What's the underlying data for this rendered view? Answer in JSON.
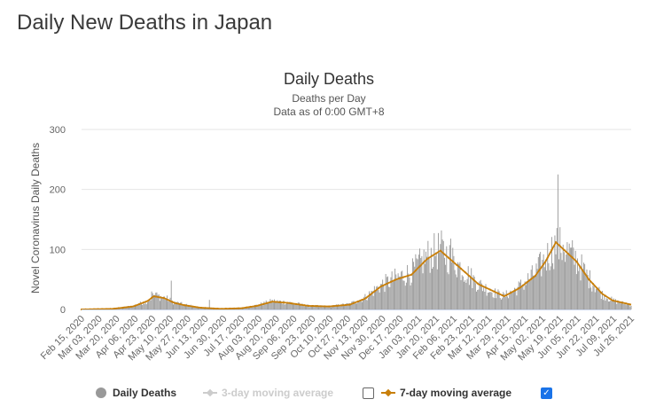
{
  "page": {
    "heading": "Daily New Deaths in Japan"
  },
  "chart_data": {
    "type": "bar",
    "title": "Daily Deaths",
    "subtitle_1": "Deaths per Day",
    "subtitle_2": "Data as of 0:00 GMT+8",
    "ylabel": "Novel Coronavirus Daily Deaths",
    "xlabel": "",
    "ylim": [
      0,
      300
    ],
    "yticks": [
      0,
      100,
      200,
      300
    ],
    "x_start": "2020-02-15",
    "x_end": "2021-08-01",
    "xtick_labels": [
      "Feb 15, 2020",
      "Mar 03, 2020",
      "Mar 20, 2020",
      "Apr 06, 2020",
      "Apr 23, 2020",
      "May 10, 2020",
      "May 27, 2020",
      "Jun 13, 2020",
      "Jun 30, 2020",
      "Jul 17, 2020",
      "Aug 03, 2020",
      "Aug 20, 2020",
      "Sep 06, 2020",
      "Sep 23, 2020",
      "Oct 10, 2020",
      "Oct 27, 2020",
      "Nov 13, 2020",
      "Nov 30, 2020",
      "Dec 17, 2020",
      "Jan 03, 2021",
      "Jan 20, 2021",
      "Feb 06, 2021",
      "Feb 23, 2021",
      "Mar 12, 2021",
      "Mar 29, 2021",
      "Apr 15, 2021",
      "May 02, 2021",
      "May 19, 2021",
      "Jun 05, 2021",
      "Jun 22, 2021",
      "Jul 09, 2021",
      "Jul 26, 2021"
    ],
    "series": [
      {
        "name": "Daily Deaths",
        "kind": "bar",
        "color": "#999999",
        "visible": true,
        "profile": [
          [
            0,
            0
          ],
          [
            30,
            1
          ],
          [
            50,
            6
          ],
          [
            64,
            14
          ],
          [
            70,
            24
          ],
          [
            80,
            20
          ],
          [
            90,
            12
          ],
          [
            100,
            8
          ],
          [
            115,
            3
          ],
          [
            135,
            1
          ],
          [
            155,
            2
          ],
          [
            170,
            7
          ],
          [
            185,
            14
          ],
          [
            200,
            12
          ],
          [
            220,
            6
          ],
          [
            240,
            5
          ],
          [
            260,
            9
          ],
          [
            275,
            20
          ],
          [
            290,
            40
          ],
          [
            305,
            52
          ],
          [
            320,
            62
          ],
          [
            335,
            88
          ],
          [
            348,
            100
          ],
          [
            360,
            82
          ],
          [
            372,
            63
          ],
          [
            385,
            42
          ],
          [
            400,
            28
          ],
          [
            410,
            22
          ],
          [
            425,
            38
          ],
          [
            440,
            60
          ],
          [
            450,
            85
          ],
          [
            460,
            107
          ],
          [
            470,
            99
          ],
          [
            480,
            82
          ],
          [
            492,
            52
          ],
          [
            505,
            25
          ],
          [
            515,
            15
          ],
          [
            533,
            7
          ]
        ],
        "spikes": [
          [
            68,
            30
          ],
          [
            72,
            28
          ],
          [
            87,
            48
          ],
          [
            124,
            16
          ],
          [
            358,
            118
          ],
          [
            462,
            225
          ],
          [
            467,
            108
          ]
        ]
      },
      {
        "name": "3-day moving average",
        "kind": "line",
        "color": "#cccccc",
        "visible": false
      },
      {
        "name": "7-day moving average",
        "kind": "line",
        "color": "#c87f0a",
        "visible": true,
        "profile": [
          [
            0,
            0
          ],
          [
            30,
            1
          ],
          [
            50,
            5
          ],
          [
            64,
            14
          ],
          [
            70,
            22
          ],
          [
            80,
            19
          ],
          [
            90,
            11
          ],
          [
            100,
            7
          ],
          [
            115,
            3
          ],
          [
            135,
            1
          ],
          [
            155,
            2
          ],
          [
            170,
            6
          ],
          [
            185,
            13
          ],
          [
            200,
            11
          ],
          [
            220,
            6
          ],
          [
            240,
            5
          ],
          [
            260,
            8
          ],
          [
            275,
            18
          ],
          [
            290,
            38
          ],
          [
            305,
            50
          ],
          [
            320,
            58
          ],
          [
            335,
            84
          ],
          [
            348,
            98
          ],
          [
            360,
            80
          ],
          [
            372,
            62
          ],
          [
            385,
            42
          ],
          [
            400,
            30
          ],
          [
            410,
            22
          ],
          [
            425,
            36
          ],
          [
            440,
            56
          ],
          [
            450,
            80
          ],
          [
            460,
            112
          ],
          [
            470,
            96
          ],
          [
            480,
            80
          ],
          [
            492,
            50
          ],
          [
            505,
            26
          ],
          [
            515,
            15
          ],
          [
            533,
            8
          ]
        ]
      }
    ],
    "legend": {
      "position": "bottom"
    }
  },
  "legend": {
    "daily": "Daily Deaths",
    "ma3": "3-day moving average",
    "ma7": "7-day moving average",
    "ma3_checked": false,
    "ma7_checked": true,
    "check_glyph": "✓"
  }
}
